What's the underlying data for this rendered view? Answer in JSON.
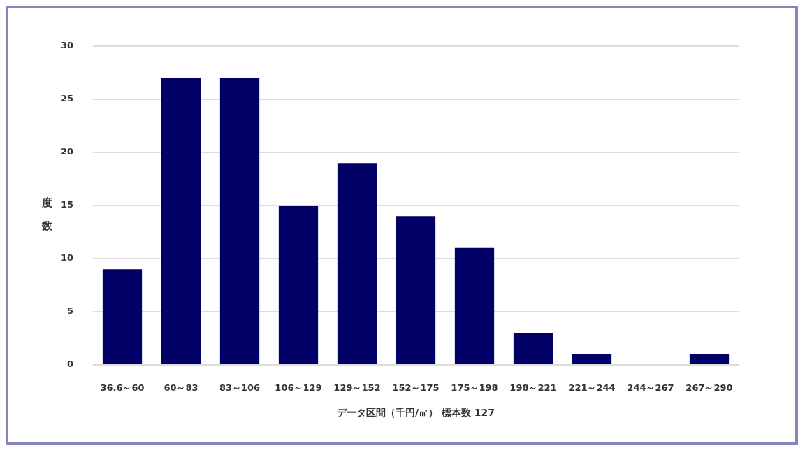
{
  "chart_data": {
    "type": "bar",
    "categories": [
      "36.6～60",
      "60～83",
      "83～106",
      "106～129",
      "129～152",
      "152～175",
      "175～198",
      "198～221",
      "221～244",
      "244～267",
      "267～290"
    ],
    "values": [
      9,
      27,
      27,
      15,
      19,
      14,
      11,
      3,
      1,
      0,
      1
    ],
    "color": "#000066",
    "xlabel": "データ区間（千円/㎡） 標本数 127",
    "ylabel": "度数",
    "ylim": [
      0,
      30
    ],
    "yticks": [
      0,
      5,
      10,
      15,
      20,
      25,
      30
    ],
    "grid": "y"
  }
}
